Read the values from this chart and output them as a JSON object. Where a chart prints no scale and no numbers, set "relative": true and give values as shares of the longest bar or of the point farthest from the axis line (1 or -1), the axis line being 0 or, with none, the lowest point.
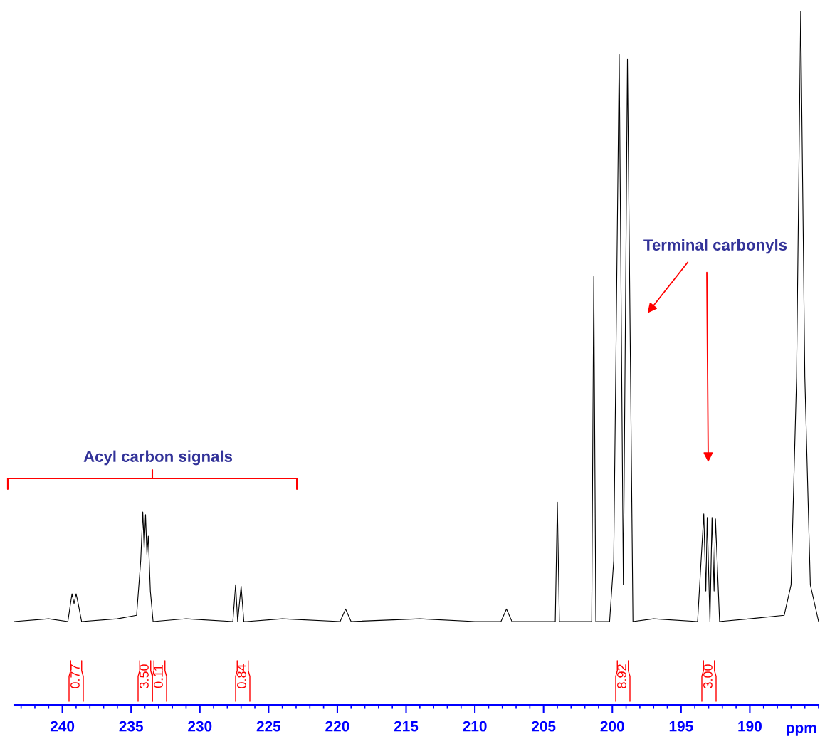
{
  "chart_data": {
    "type": "line",
    "relative": true,
    "xlabel": "ppm",
    "xlim": [
      243.5,
      185.0
    ],
    "xticks": [
      240,
      235,
      230,
      225,
      220,
      215,
      210,
      205,
      200,
      195,
      190
    ],
    "x": [
      243.5,
      241.0,
      239.6,
      239.3,
      239.15,
      239.0,
      238.85,
      238.6,
      236.0,
      234.6,
      234.3,
      234.15,
      234.05,
      233.95,
      233.85,
      233.75,
      233.6,
      233.4,
      231.0,
      227.6,
      227.4,
      227.25,
      227.0,
      226.8,
      226.6,
      224.0,
      219.8,
      219.4,
      219.0,
      214.0,
      210.0,
      208.1,
      207.7,
      207.3,
      206.0,
      204.15,
      204.0,
      203.85,
      202.5,
      201.5,
      201.35,
      201.2,
      200.2,
      199.9,
      199.5,
      199.2,
      198.9,
      198.5,
      197.0,
      193.8,
      193.35,
      193.2,
      193.1,
      192.9,
      192.75,
      192.6,
      192.5,
      192.2,
      190.0,
      187.5,
      187.0,
      186.6,
      186.3,
      186.0,
      185.6,
      185.0
    ],
    "values": [
      0.12,
      0.124,
      0.12,
      0.16,
      0.146,
      0.16,
      0.146,
      0.12,
      0.124,
      0.129,
      0.208,
      0.278,
      0.226,
      0.274,
      0.217,
      0.243,
      0.164,
      0.12,
      0.124,
      0.12,
      0.173,
      0.12,
      0.171,
      0.12,
      0.12,
      0.124,
      0.12,
      0.138,
      0.12,
      0.124,
      0.12,
      0.12,
      0.138,
      0.12,
      0.12,
      0.12,
      0.292,
      0.12,
      0.12,
      0.12,
      0.617,
      0.12,
      0.12,
      0.208,
      0.937,
      0.173,
      0.93,
      0.12,
      0.124,
      0.12,
      0.275,
      0.164,
      0.27,
      0.12,
      0.27,
      0.164,
      0.268,
      0.12,
      0.124,
      0.129,
      0.173,
      0.472,
      1.0,
      0.472,
      0.173,
      0.12
    ],
    "color": "#000000",
    "annotations": [
      "Acyl carbon signals",
      "Terminal carbonyls",
      "0.77",
      "3.50",
      "0.11",
      "0.84",
      "8.92",
      "3.00"
    ]
  }
}
